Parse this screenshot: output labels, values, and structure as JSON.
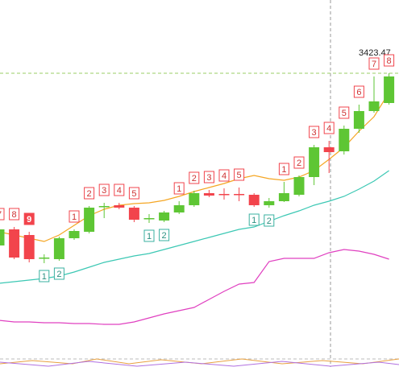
{
  "chart_data": {
    "type": "candlestick",
    "categories": [
      null,
      null,
      null,
      null,
      null,
      null,
      null,
      null,
      null,
      null,
      null,
      null,
      null,
      null,
      null,
      null,
      null,
      null,
      null,
      null,
      null,
      null,
      null,
      null,
      null,
      null,
      null
    ],
    "open": [
      3102.5,
      3132.5,
      3122,
      3078.5,
      3077,
      3116,
      3128,
      3174.5,
      3177.5,
      3173,
      3152,
      3149,
      3164,
      3177.5,
      3200,
      3198.5,
      3198.5,
      3197,
      3177.5,
      3185,
      3197,
      3230,
      3285.5,
      3278,
      3320,
      3353,
      3368
    ],
    "close": [
      3132.5,
      3080,
      3077,
      3080,
      3116,
      3129.5,
      3173,
      3176,
      3173,
      3150.5,
      3153.5,
      3164,
      3177.5,
      3200,
      3195.5,
      3197,
      3197,
      3177.5,
      3185,
      3200,
      3230,
      3285.5,
      3276.5,
      3320,
      3353,
      3371,
      3417.5
    ],
    "high": [
      3137,
      3137,
      3128,
      3086,
      3119,
      3132.5,
      3176,
      3182,
      3182,
      3176,
      3161,
      3167,
      3185,
      3204.5,
      3206,
      3209,
      3210.5,
      3200,
      3191,
      3221,
      3233,
      3290,
      3297.5,
      3326,
      3365,
      3417.5,
      3423.47
    ],
    "low": [
      3083,
      3077,
      3071,
      3069.5,
      3074,
      3113,
      3125,
      3153.5,
      3170,
      3146,
      3144.5,
      3146,
      3161,
      3174.5,
      3192.5,
      3188,
      3185,
      3174.5,
      3173,
      3183.5,
      3194,
      3215,
      3237.5,
      3272,
      3312.5,
      3350,
      3365
    ],
    "up_color": "#5ec634",
    "down_color": "#f2444c",
    "lines": [
      {
        "color": "#f5a623",
        "values": [
          3128,
          3122,
          3116,
          3110,
          3122,
          3140,
          3158,
          3170,
          3177.5,
          3180.5,
          3182,
          3186.5,
          3194,
          3203,
          3210.5,
          3218,
          3227,
          3233,
          3227,
          3224,
          3230,
          3242,
          3263,
          3285.5,
          3315.5,
          3342.5,
          3387.5
        ]
      },
      {
        "color": "#3cc8b4",
        "values": [
          3032,
          3035,
          3038,
          3041,
          3045.5,
          3053,
          3062,
          3071,
          3077,
          3083,
          3087.5,
          3095,
          3102.5,
          3110,
          3117.5,
          3125,
          3132.5,
          3137,
          3147.5,
          3158,
          3167,
          3177.5,
          3185,
          3194,
          3207.5,
          3222.5,
          3242
        ]
      },
      {
        "color": "#e040c0",
        "values": [
          2963,
          2960,
          2960,
          2958.5,
          2958.5,
          2957,
          2957,
          2955.5,
          2955.5,
          2960,
          2967.5,
          2975,
          2981,
          2987,
          3002,
          3017,
          3030.5,
          3033.5,
          3072.5,
          3078.5,
          3078.5,
          3078.5,
          3089,
          3095,
          3092,
          3086,
          3077
        ]
      }
    ],
    "td_labels": [
      {
        "text": "7",
        "side": "above",
        "style": "outline"
      },
      {
        "text": "8",
        "side": "above",
        "style": "outline"
      },
      {
        "text": "9",
        "side": "above",
        "style": "filled"
      },
      {
        "text": "1",
        "side": "below",
        "style": "outline"
      },
      {
        "text": "2",
        "side": "below",
        "style": "outline"
      },
      {
        "text": "1",
        "side": "above",
        "style": "outline"
      },
      {
        "text": "2",
        "side": "above",
        "style": "outline"
      },
      {
        "text": "3",
        "side": "above",
        "style": "outline"
      },
      {
        "text": "4",
        "side": "above",
        "style": "outline"
      },
      {
        "text": "5",
        "side": "above",
        "style": "outline"
      },
      {
        "text": "1",
        "side": "below",
        "style": "outline"
      },
      {
        "text": "2",
        "side": "below",
        "style": "outline"
      },
      {
        "text": "1",
        "side": "above",
        "style": "outline"
      },
      {
        "text": "2",
        "side": "above",
        "style": "outline"
      },
      {
        "text": "3",
        "side": "above",
        "style": "outline"
      },
      {
        "text": "4",
        "side": "above",
        "style": "outline"
      },
      {
        "text": "5",
        "side": "above",
        "style": "outline"
      },
      {
        "text": "1",
        "side": "below",
        "style": "outline"
      },
      {
        "text": "2",
        "side": "below",
        "style": "outline"
      },
      {
        "text": "1",
        "side": "above",
        "style": "outline"
      },
      {
        "text": "2",
        "side": "above",
        "style": "outline"
      },
      {
        "text": "3",
        "side": "above",
        "style": "outline"
      },
      {
        "text": "4",
        "side": "above",
        "style": "outline"
      },
      {
        "text": "5",
        "side": "above",
        "style": "outline"
      },
      {
        "text": "6",
        "side": "above",
        "style": "outline"
      },
      {
        "text": "7",
        "side": "above",
        "style": "outline"
      },
      {
        "text": "8",
        "side": "above",
        "style": "outline"
      }
    ],
    "price_label": 3423.47,
    "ylim": [
      2876,
      3560
    ]
  }
}
